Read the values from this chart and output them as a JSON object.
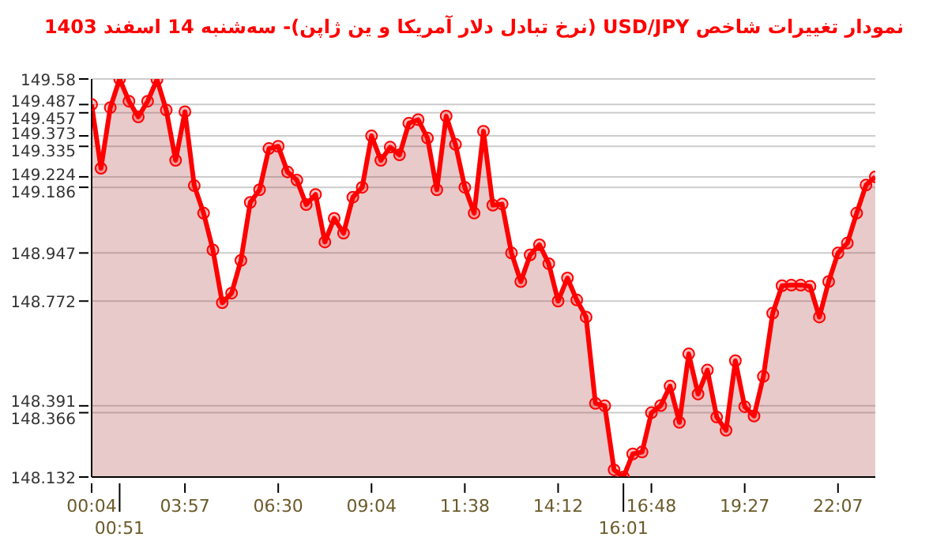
{
  "chart_data": {
    "type": "area",
    "title": "نمودار تغییرات شاخص USD/JPY (نرخ تبادل دلار آمریکا و ین ژاپن)- سه‌شنبه  14 اسفند 1403",
    "categories": [
      "00:04",
      null,
      null,
      "00:51",
      null,
      null,
      null,
      null,
      null,
      null,
      "03:57",
      null,
      null,
      null,
      null,
      null,
      null,
      null,
      null,
      null,
      "06:30",
      null,
      null,
      null,
      null,
      null,
      null,
      null,
      null,
      null,
      "09:04",
      null,
      null,
      null,
      null,
      null,
      null,
      null,
      null,
      null,
      "11:38",
      null,
      null,
      null,
      null,
      null,
      null,
      null,
      null,
      null,
      "14:12",
      null,
      null,
      null,
      null,
      null,
      null,
      "16:01",
      null,
      null,
      "16:48",
      null,
      null,
      null,
      null,
      null,
      null,
      null,
      null,
      null,
      "19:27",
      null,
      null,
      null,
      null,
      null,
      null,
      null,
      null,
      null,
      "22:07",
      null,
      null,
      null,
      null
    ],
    "series": [
      {
        "color": "#ff0000",
        "values": [
          149.487,
          149.255,
          149.476,
          149.58,
          149.499,
          149.442,
          149.499,
          149.578,
          149.467,
          149.284,
          149.461,
          149.192,
          149.092,
          148.958,
          148.766,
          148.801,
          148.92,
          149.131,
          149.177,
          149.327,
          149.335,
          149.242,
          149.212,
          149.123,
          149.16,
          148.987,
          149.073,
          149.019,
          149.15,
          149.186,
          149.373,
          149.284,
          149.332,
          149.304,
          149.419,
          149.432,
          149.365,
          149.177,
          149.445,
          149.342,
          149.186,
          149.092,
          149.39,
          149.121,
          149.125,
          148.947,
          148.843,
          148.94,
          148.977,
          148.908,
          148.772,
          148.856,
          148.776,
          148.714,
          148.4,
          148.391,
          148.158,
          148.132,
          148.216,
          148.223,
          148.366,
          148.392,
          148.463,
          148.331,
          148.58,
          148.434,
          148.521,
          148.35,
          148.302,
          148.555,
          148.388,
          148.354,
          148.498,
          148.728,
          148.828,
          148.83,
          148.83,
          148.826,
          148.714,
          148.843,
          148.947,
          148.983,
          149.092,
          149.194,
          149.224
        ]
      }
    ],
    "ylim": [
      148.132,
      149.58
    ],
    "yticks": [
      149.58,
      149.487,
      149.457,
      149.373,
      149.335,
      149.224,
      149.186,
      148.947,
      148.772,
      148.391,
      148.366,
      148.132
    ],
    "grid": "y",
    "marker": "circle",
    "line_style": "solid"
  }
}
